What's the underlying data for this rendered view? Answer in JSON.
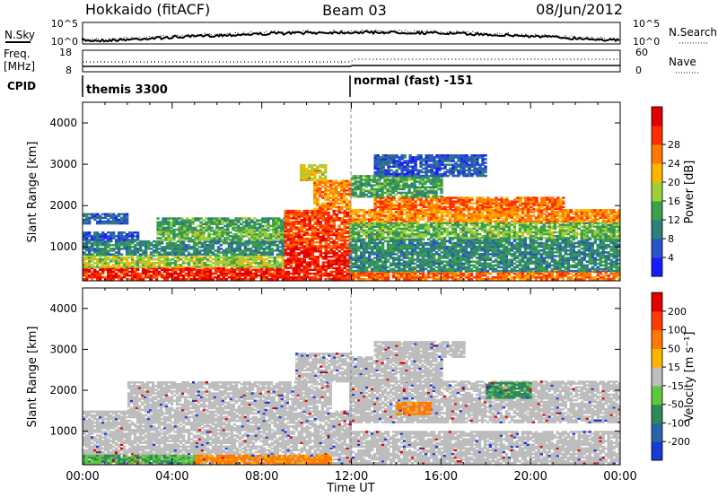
{
  "header": {
    "title": "Hokkaido (fitACF)",
    "beam": "Beam 03",
    "date": "08/Jun/2012"
  },
  "noise_panel": {
    "left_label": "N.Sky",
    "right_label": "N.Search",
    "left_ticks": [
      "10^5",
      "10^0"
    ],
    "right_ticks": [
      "10^5",
      "10^0"
    ]
  },
  "freq_panel": {
    "left_label_1": "Freq.",
    "left_label_2": "[MHz]",
    "right_label": "Nave",
    "left_ticks": [
      "18",
      "8"
    ],
    "right_ticks": [
      "60",
      "0"
    ]
  },
  "cpid_panel": {
    "label": "CPID",
    "modes": [
      "themis 3300",
      "normal (fast) -151"
    ]
  },
  "chart_data": [
    {
      "type": "heatmap",
      "name": "power",
      "ylabel": "Slant Range [km]",
      "xlabel": "Time UT",
      "x_ticks": [
        "00:00",
        "04:00",
        "08:00",
        "12:00",
        "16:00",
        "20:00",
        "00:00"
      ],
      "y_ticks": [
        1000,
        2000,
        3000,
        4000
      ],
      "xlim_hours": [
        0,
        24
      ],
      "ylim_km": [
        180,
        4500
      ],
      "colorbar": {
        "label": "Power [dB]",
        "ticks": [
          "4",
          "8",
          "12",
          "16",
          "20",
          "24",
          "28"
        ],
        "colors": [
          "#1a1aff",
          "#2a52c8",
          "#2f7f7a",
          "#3aa04a",
          "#9ccf3a",
          "#ffb400",
          "#ff7a00",
          "#ff2d00",
          "#e00000"
        ]
      },
      "regions": [
        {
          "t0": 0.0,
          "t1": 9.0,
          "r0": 200,
          "r1": 500,
          "db": 28
        },
        {
          "t0": 0.0,
          "t1": 9.0,
          "r0": 500,
          "r1": 800,
          "db": 16
        },
        {
          "t0": 0.0,
          "t1": 9.0,
          "r0": 800,
          "r1": 1150,
          "db": 10
        },
        {
          "t0": 0.0,
          "t1": 2.5,
          "r0": 1150,
          "r1": 1350,
          "db": 6
        },
        {
          "t0": 3.3,
          "t1": 9.0,
          "r0": 1150,
          "r1": 1400,
          "db": 14
        },
        {
          "t0": 3.3,
          "t1": 9.0,
          "r0": 1400,
          "r1": 1700,
          "db": 12
        },
        {
          "t0": 0.0,
          "t1": 2.0,
          "r0": 1550,
          "r1": 1800,
          "db": 7
        },
        {
          "t0": 9.0,
          "t1": 11.9,
          "r0": 200,
          "r1": 1000,
          "db": 28
        },
        {
          "t0": 9.0,
          "t1": 11.9,
          "r0": 1000,
          "r1": 1900,
          "db": 26
        },
        {
          "t0": 10.3,
          "t1": 11.9,
          "r0": 1900,
          "r1": 2600,
          "db": 22
        },
        {
          "t0": 9.7,
          "t1": 10.8,
          "r0": 2600,
          "r1": 3000,
          "db": 18
        },
        {
          "t0": 11.9,
          "t1": 24.0,
          "r0": 200,
          "r1": 400,
          "db": 24
        },
        {
          "t0": 11.9,
          "t1": 24.0,
          "r0": 400,
          "r1": 1200,
          "db": 10
        },
        {
          "t0": 11.9,
          "t1": 24.0,
          "r0": 1200,
          "r1": 1600,
          "db": 14
        },
        {
          "t0": 11.9,
          "t1": 24.0,
          "r0": 1600,
          "r1": 1900,
          "db": 22
        },
        {
          "t0": 13.0,
          "t1": 21.5,
          "r0": 1900,
          "r1": 2200,
          "db": 24
        },
        {
          "t0": 12.0,
          "t1": 16.0,
          "r0": 2200,
          "r1": 2700,
          "db": 12
        },
        {
          "t0": 13.0,
          "t1": 18.0,
          "r0": 2700,
          "r1": 3200,
          "db": 6
        }
      ]
    },
    {
      "type": "heatmap",
      "name": "velocity",
      "ylabel": "Slant Range [km]",
      "xlabel": "Time UT",
      "x_ticks": [
        "00:00",
        "04:00",
        "08:00",
        "12:00",
        "16:00",
        "20:00",
        "00:00"
      ],
      "y_ticks": [
        1000,
        2000,
        3000,
        4000
      ],
      "xlim_hours": [
        0,
        24
      ],
      "ylim_km": [
        180,
        4500
      ],
      "colorbar": {
        "label": "Velocity [m s⁻¹]",
        "ticks": [
          "200",
          "100",
          "50",
          "15",
          "-15",
          "-50",
          "-100",
          "-200"
        ],
        "colors": [
          "#1a3ad6",
          "#2a64a8",
          "#2f8a5a",
          "#5ec83a",
          "#bdbdbd",
          "#ffb400",
          "#ff7a00",
          "#ff3c00",
          "#e00000"
        ]
      },
      "regions": [
        {
          "t0": 0.0,
          "t1": 11.9,
          "r0": 200,
          "r1": 1500,
          "v": 0
        },
        {
          "t0": 0.0,
          "t1": 5.0,
          "r0": 200,
          "r1": 400,
          "v": 30
        },
        {
          "t0": 5.0,
          "t1": 11.0,
          "r0": 200,
          "r1": 400,
          "v": -40
        },
        {
          "t0": 2.0,
          "t1": 11.0,
          "r0": 1500,
          "r1": 2200,
          "v": 0
        },
        {
          "t0": 9.5,
          "t1": 11.9,
          "r0": 2200,
          "r1": 2900,
          "v": 0
        },
        {
          "t0": 11.9,
          "t1": 24.0,
          "r0": 200,
          "r1": 1000,
          "v": 0
        },
        {
          "t0": 11.9,
          "t1": 24.0,
          "r0": 1200,
          "r1": 2200,
          "v": 0
        },
        {
          "t0": 18.0,
          "t1": 20.0,
          "r0": 1800,
          "r1": 2200,
          "v": 40
        },
        {
          "t0": 14.0,
          "t1": 15.5,
          "r0": 1400,
          "r1": 1700,
          "v": -40
        },
        {
          "t0": 12.0,
          "t1": 16.0,
          "r0": 2200,
          "r1": 2800,
          "v": 0
        },
        {
          "t0": 13.0,
          "t1": 17.0,
          "r0": 2800,
          "r1": 3200,
          "v": 0
        }
      ]
    }
  ]
}
